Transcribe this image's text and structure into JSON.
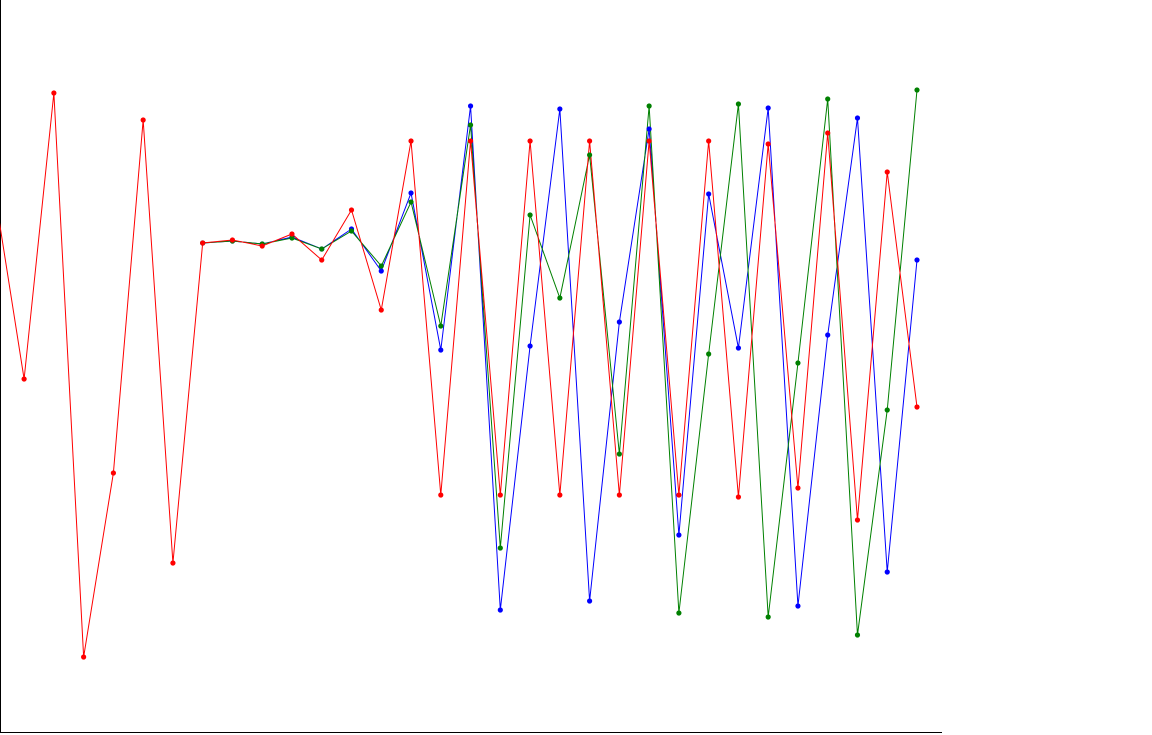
{
  "chart_data": {
    "type": "line",
    "x": [
      0,
      1,
      2,
      3,
      4,
      5,
      6,
      7,
      8,
      9,
      10,
      11,
      12,
      13,
      14,
      15,
      16,
      17,
      18,
      19,
      20,
      21,
      22,
      23,
      24,
      25,
      26,
      27,
      28,
      29,
      30,
      31
    ],
    "xlim": [
      0.19,
      31.84
    ],
    "ylim": [
      0,
      733
    ],
    "series": [
      {
        "color": "#0000ff",
        "values": [
          null,
          null,
          null,
          null,
          null,
          null,
          null,
          490,
          492,
          489,
          496,
          484,
          504,
          462,
          540,
          383,
          627,
          123,
          387,
          624,
          132,
          411,
          604,
          198,
          539,
          385,
          625,
          127,
          398,
          615,
          161,
          473
        ]
      },
      {
        "color": "#008000",
        "values": [
          null,
          null,
          null,
          null,
          null,
          null,
          null,
          490,
          492,
          489,
          495,
          484,
          502,
          467,
          531,
          407,
          608,
          185,
          518,
          435,
          578,
          279,
          627,
          120,
          379,
          629,
          116,
          370,
          634,
          98,
          323,
          643
        ]
      },
      {
        "color": "#ff0000",
        "values": [
          543,
          354,
          640,
          76,
          260,
          613,
          170,
          490,
          493,
          487,
          499,
          473,
          523,
          423,
          592,
          238,
          592,
          238,
          592,
          238,
          592,
          238,
          592,
          238,
          592,
          236,
          589,
          245,
          600,
          213,
          561,
          326
        ]
      }
    ]
  }
}
